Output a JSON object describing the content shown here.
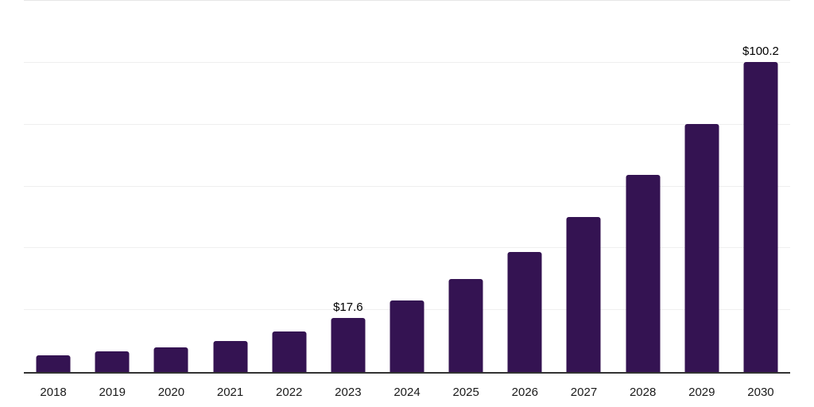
{
  "chart_data": {
    "type": "bar",
    "title": "",
    "xlabel": "",
    "ylabel": "",
    "categories": [
      "2018",
      "2019",
      "2020",
      "2021",
      "2022",
      "2023",
      "2024",
      "2025",
      "2026",
      "2027",
      "2028",
      "2029",
      "2030"
    ],
    "values": [
      5.4,
      6.7,
      8.0,
      10.1,
      13.2,
      17.6,
      23.2,
      30.1,
      38.9,
      50.0,
      63.7,
      80.3,
      100.2
    ],
    "data_labels": [
      "",
      "",
      "",
      "",
      "",
      "$17.6",
      "",
      "",
      "",
      "",
      "",
      "",
      "$100.2"
    ],
    "ylim": [
      0,
      120
    ],
    "ytick_interval": 20,
    "y_tick_labels_visible": false,
    "grid": "horizontal",
    "legend": "none",
    "colors": {
      "bar": "#341352",
      "axis_line": "#333333",
      "gridline": "#efefef",
      "data_label": "#000000",
      "tick_label": "#1a1a1a",
      "background": "#ffffff"
    }
  }
}
